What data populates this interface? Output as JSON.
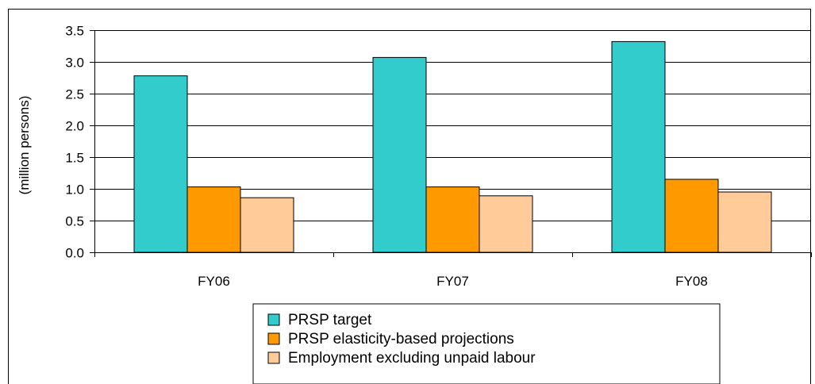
{
  "chart_data": {
    "type": "bar",
    "categories": [
      "FY06",
      "FY07",
      "FY08"
    ],
    "series": [
      {
        "name": "PRSP target",
        "values": [
          2.78,
          3.07,
          3.32
        ],
        "color": "#33CCCC"
      },
      {
        "name": "PRSP elasticity-based projections",
        "values": [
          1.03,
          1.03,
          1.15
        ],
        "color": "#FF9900"
      },
      {
        "name": "Employment excluding unpaid labour",
        "values": [
          0.86,
          0.89,
          0.95
        ],
        "color": "#FFCC99"
      }
    ],
    "ylabel": "(million persons)",
    "ylim": [
      0,
      3.5
    ],
    "yticks": [
      "0.0",
      "0.5",
      "1.0",
      "1.5",
      "2.0",
      "2.5",
      "3.0",
      "3.5"
    ],
    "grid": true,
    "legend": "bottom"
  }
}
